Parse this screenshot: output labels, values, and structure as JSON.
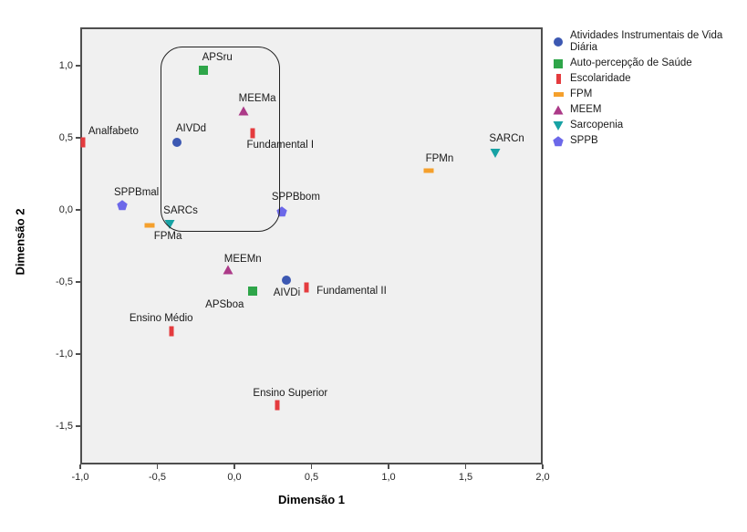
{
  "chart_data": {
    "type": "scatter",
    "title": "",
    "xlabel": "Dimensão 1",
    "ylabel": "Dimensão 2",
    "xlim": [
      -1.0,
      2.0
    ],
    "ylim": [
      -1.764,
      1.264
    ],
    "grid": false,
    "legend_position": "right",
    "plot_bg": "#F0F0F0",
    "frame_color": "#4E4E4E",
    "x_ticks": [
      {
        "v": -1.0,
        "label": "-1,0"
      },
      {
        "v": -0.5,
        "label": "-0,5"
      },
      {
        "v": 0.0,
        "label": "0,0"
      },
      {
        "v": 0.5,
        "label": "0,5"
      },
      {
        "v": 1.0,
        "label": "1,0"
      },
      {
        "v": 1.5,
        "label": "1,5"
      },
      {
        "v": 2.0,
        "label": "2,0"
      }
    ],
    "y_ticks": [
      {
        "v": 1.0,
        "label": "1,0"
      },
      {
        "v": 0.5,
        "label": "0,5"
      },
      {
        "v": 0.0,
        "label": "0,0"
      },
      {
        "v": -0.5,
        "label": "-0,5"
      },
      {
        "v": -1.0,
        "label": "-1,0"
      },
      {
        "v": -1.5,
        "label": "-1,5"
      }
    ],
    "series": [
      {
        "name": "Atividades Instrumentais de Vida Diária",
        "marker": "circle",
        "color": "#3C58B2",
        "points": [
          {
            "label": "AIVDd",
            "x": -0.37,
            "y": 0.47,
            "label_offset": [
              15,
              -15
            ]
          },
          {
            "label": "AIVDi",
            "x": 0.34,
            "y": -0.49,
            "label_offset": [
              0,
              14
            ]
          }
        ]
      },
      {
        "name": "Auto-percepção de Saúde",
        "marker": "square",
        "color": "#2EA549",
        "points": [
          {
            "label": "APSru",
            "x": -0.2,
            "y": 0.97,
            "label_offset": [
              15,
              -14
            ]
          },
          {
            "label": "APSboa",
            "x": 0.12,
            "y": -0.56,
            "label_offset": [
              -31,
              15
            ]
          }
        ]
      },
      {
        "name": "Escolaridade",
        "marker": "vbar",
        "color": "#E43B3E",
        "points": [
          {
            "label": "Analfabeto",
            "x": -0.98,
            "y": 0.47,
            "label_offset": [
              33,
              -12
            ]
          },
          {
            "label": "Fundamental I",
            "x": 0.12,
            "y": 0.53,
            "label_offset": [
              30,
              13
            ]
          },
          {
            "label": "Fundamental II",
            "x": 0.47,
            "y": -0.54,
            "label_offset": [
              49,
              4
            ]
          },
          {
            "label": "Ensino Médio",
            "x": -0.41,
            "y": -0.84,
            "label_offset": [
              -11,
              -14
            ]
          },
          {
            "label": "Ensino Superior",
            "x": 0.28,
            "y": -1.35,
            "label_offset": [
              14,
              -13
            ]
          }
        ]
      },
      {
        "name": "FPM",
        "marker": "hbar",
        "color": "#F5A02C",
        "points": [
          {
            "label": "FPMa",
            "x": -0.55,
            "y": -0.11,
            "label_offset": [
              20,
              12
            ]
          },
          {
            "label": "FPMn",
            "x": 1.26,
            "y": 0.27,
            "label_offset": [
              12,
              -13
            ]
          }
        ]
      },
      {
        "name": "MEEM",
        "marker": "triangle-up",
        "color": "#AC3A88",
        "points": [
          {
            "label": "MEEMa",
            "x": 0.06,
            "y": 0.68,
            "label_offset": [
              15,
              -14
            ]
          },
          {
            "label": "MEEMn",
            "x": -0.04,
            "y": -0.42,
            "label_offset": [
              16,
              -12
            ]
          }
        ]
      },
      {
        "name": "Sarcopenia",
        "marker": "triangle-down",
        "color": "#17A2A4",
        "points": [
          {
            "label": "SARCs",
            "x": -0.42,
            "y": -0.1,
            "label_offset": [
              12,
              -15
            ]
          },
          {
            "label": "SARCn",
            "x": 1.69,
            "y": 0.39,
            "label_offset": [
              13,
              -16
            ]
          }
        ]
      },
      {
        "name": "SPPB",
        "marker": "pentagon",
        "color": "#6C68E9",
        "points": [
          {
            "label": "SPPBmal",
            "x": -0.73,
            "y": 0.03,
            "label_offset": [
              16,
              -14
            ]
          },
          {
            "label": "SPPBbom",
            "x": 0.31,
            "y": -0.01,
            "label_offset": [
              15,
              -16
            ]
          }
        ]
      }
    ],
    "annotation_box": {
      "x1": -0.477,
      "y1": -0.139,
      "x2": 0.283,
      "y2": 1.132
    }
  }
}
